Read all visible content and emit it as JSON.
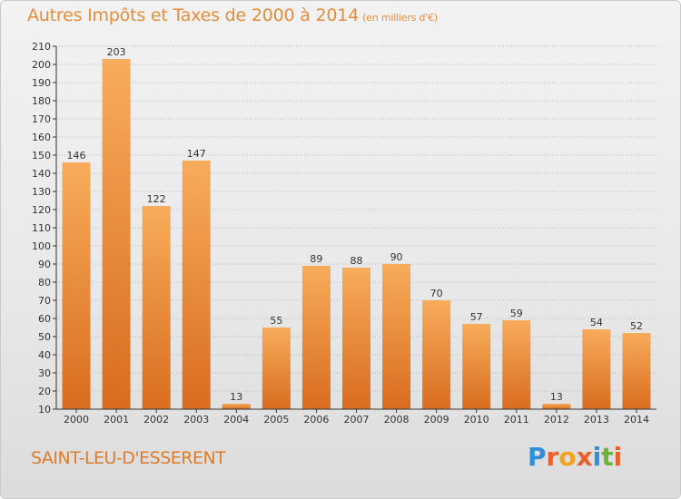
{
  "title": "Autres Impôts et Taxes de 2000 à 2014",
  "subtitle": "(en milliers d'€)",
  "city": "SAINT-LEU-D'ESSERENT",
  "logo": {
    "letters": [
      "P",
      "r",
      "o",
      "x",
      "i",
      "t",
      "i"
    ],
    "colors": [
      "#2f8fd8",
      "#e9602a",
      "#f2a31e",
      "#e9602a",
      "#2f8fd8",
      "#6ab43e",
      "#e9602a"
    ]
  },
  "colors": {
    "bar_top": "#f7ac5c",
    "bar_bottom": "#d96c1e",
    "title": "#e58d3a",
    "axis": "#333333"
  },
  "chart_data": {
    "type": "bar",
    "categories": [
      "2000",
      "2001",
      "2002",
      "2003",
      "2004",
      "2005",
      "2006",
      "2007",
      "2008",
      "2009",
      "2010",
      "2011",
      "2012",
      "2013",
      "2014"
    ],
    "values": [
      146,
      203,
      122,
      147,
      13,
      55,
      89,
      88,
      90,
      70,
      57,
      59,
      13,
      54,
      52
    ],
    "ylim": [
      10,
      210
    ],
    "yticks": [
      10,
      20,
      30,
      40,
      50,
      60,
      70,
      80,
      90,
      100,
      110,
      120,
      130,
      140,
      150,
      160,
      170,
      180,
      190,
      200,
      210
    ],
    "grid": "horizontal-dotted"
  }
}
